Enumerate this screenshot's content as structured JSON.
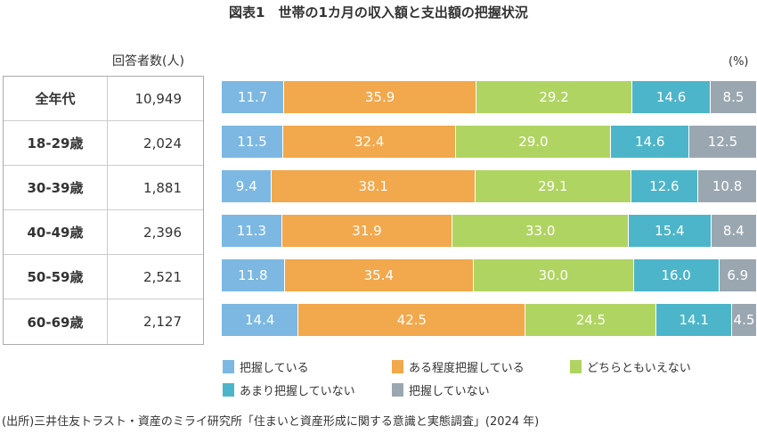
{
  "title": "図表1　世帯の1カ月の収入額と支出額の把握状況",
  "table": {
    "header": "回答者数(人)",
    "rows": [
      {
        "label": "全年代",
        "n": "10,949"
      },
      {
        "label": "18-29歳",
        "n": "2,024"
      },
      {
        "label": "30-39歳",
        "n": "1,881"
      },
      {
        "label": "40-49歳",
        "n": "2,396"
      },
      {
        "label": "50-59歳",
        "n": "2,521"
      },
      {
        "label": "60-69歳",
        "n": "2,127"
      }
    ]
  },
  "source": "(出所)三井住友トラスト・資産のミライ研究所「住まいと資産形成に関する意識と実態調査」(2024 年)",
  "chart_data": {
    "type": "bar",
    "orientation": "horizontal",
    "stacked": true,
    "unit": "(%)",
    "categories": [
      "全年代",
      "18-29歳",
      "30-39歳",
      "40-49歳",
      "50-59歳",
      "60-69歳"
    ],
    "series": [
      {
        "name": "把握している",
        "color": "#7cb8e2",
        "values": [
          11.7,
          11.5,
          9.4,
          11.3,
          11.8,
          14.4
        ]
      },
      {
        "name": "ある程度把握している",
        "color": "#f2a84c",
        "values": [
          35.9,
          32.4,
          38.1,
          31.9,
          35.4,
          42.5
        ]
      },
      {
        "name": "どちらともいえない",
        "color": "#b0d462",
        "values": [
          29.2,
          29.0,
          29.1,
          33.0,
          30.0,
          24.5
        ]
      },
      {
        "name": "あまり把握していない",
        "color": "#4db5c9",
        "values": [
          14.6,
          14.6,
          12.6,
          15.4,
          16.0,
          14.1
        ]
      },
      {
        "name": "把握していない",
        "color": "#9aa7b0",
        "values": [
          8.5,
          12.5,
          10.8,
          8.4,
          6.9,
          4.5
        ]
      }
    ],
    "legend": "bottom"
  }
}
